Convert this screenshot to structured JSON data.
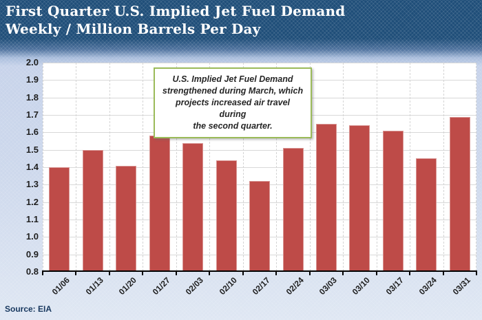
{
  "source": {
    "text": "Source: EIA"
  },
  "colors": {
    "header_bg": "#1F4E79",
    "page_bg_top": "#C7D3EA",
    "page_bg_bottom": "#DFE7F3",
    "bar_fill": "#BE4B48",
    "bar_border": "#D99694",
    "gridline": "#D8D8D8",
    "axis_line": "#000000",
    "annotation_border": "#9BBB59",
    "tick_label": "#1F1F1F",
    "title_text": "#FFFFFF",
    "source_text": "#17375E"
  },
  "chart_data": {
    "type": "bar",
    "title": "First Quarter U.S. Implied Jet Fuel Demand",
    "subtitle": "Weekly / Million Barrels Per Day",
    "categories": [
      "01/06",
      "01/13",
      "01/20",
      "01/27",
      "02/03",
      "02/10",
      "02/17",
      "02/24",
      "03/03",
      "03/10",
      "03/17",
      "03/24",
      "03/31"
    ],
    "values": [
      1.4,
      1.5,
      1.41,
      1.58,
      1.54,
      1.44,
      1.32,
      1.51,
      1.65,
      1.64,
      1.61,
      1.45,
      1.69
    ],
    "xlabel": "",
    "ylabel": "",
    "ylim": [
      0.8,
      2.0
    ],
    "ytick_step": 0.1,
    "yticks": [
      "2.0",
      "1.9",
      "1.8",
      "1.7",
      "1.6",
      "1.5",
      "1.4",
      "1.3",
      "1.2",
      "1.1",
      "1.0",
      "0.9",
      "0.8"
    ],
    "grid": true,
    "legend": "none",
    "annotation_text": "U.S. Implied Jet Fuel Demand\nstrengthened during March, which\nprojects increased air travel during\nthe second quarter."
  }
}
